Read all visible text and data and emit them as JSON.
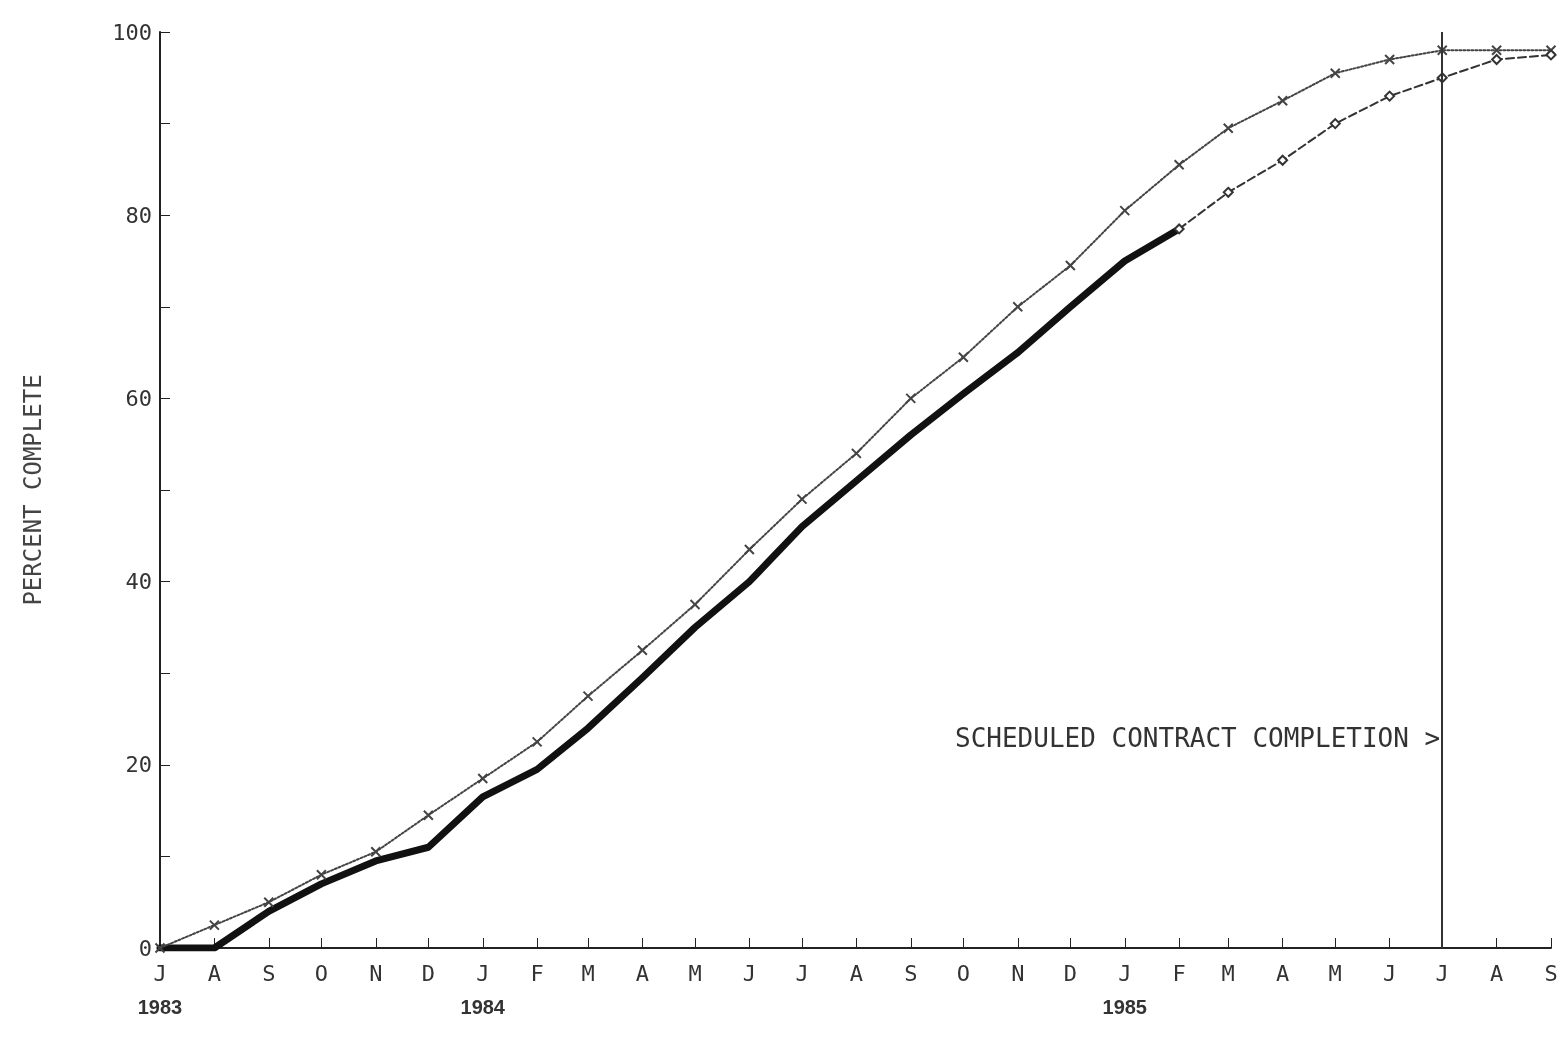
{
  "chart_data": {
    "type": "line",
    "ylabel": "PERCENT COMPLETE",
    "x": [
      "1983-07",
      "1983-08",
      "1983-09",
      "1983-10",
      "1983-11",
      "1983-12",
      "1984-01",
      "1984-02",
      "1984-03",
      "1984-04",
      "1984-05",
      "1984-06",
      "1984-07",
      "1984-08",
      "1984-09",
      "1984-10",
      "1984-11",
      "1984-12",
      "1985-01",
      "1985-02",
      "1985-03",
      "1985-04",
      "1985-05",
      "1985-06",
      "1985-07",
      "1985-08",
      "1985-09"
    ],
    "xlim": [
      "1983-07",
      "1985-09"
    ],
    "xticks": [
      {
        "value": "1983-07",
        "label": "J\n1983"
      },
      {
        "value": "1983-08",
        "label": "A"
      },
      {
        "value": "1983-09",
        "label": "S"
      },
      {
        "value": "1983-10",
        "label": "O"
      },
      {
        "value": "1983-11",
        "label": "N"
      },
      {
        "value": "1983-12",
        "label": "D"
      },
      {
        "value": "1984-01",
        "label": "J\n1984"
      },
      {
        "value": "1984-02",
        "label": "F"
      },
      {
        "value": "1984-03",
        "label": "M"
      },
      {
        "value": "1984-04",
        "label": "A"
      },
      {
        "value": "1984-05",
        "label": "M"
      },
      {
        "value": "1984-06",
        "label": "J"
      },
      {
        "value": "1984-07",
        "label": "J"
      },
      {
        "value": "1984-08",
        "label": "A"
      },
      {
        "value": "1984-09",
        "label": "S"
      },
      {
        "value": "1984-10",
        "label": "O"
      },
      {
        "value": "1984-11",
        "label": "N"
      },
      {
        "value": "1984-12",
        "label": "D"
      },
      {
        "value": "1985-01",
        "label": "J\n1985"
      },
      {
        "value": "1985-02",
        "label": "F"
      },
      {
        "value": "1985-03",
        "label": "M"
      },
      {
        "value": "1985-04",
        "label": "A"
      },
      {
        "value": "1985-05",
        "label": "M"
      },
      {
        "value": "1985-06",
        "label": "J"
      },
      {
        "value": "1985-07",
        "label": "J"
      },
      {
        "value": "1985-08",
        "label": "A"
      },
      {
        "value": "1985-09",
        "label": "S"
      }
    ],
    "ylim": [
      0,
      100
    ],
    "yticks": [
      0,
      {
        "value": 10,
        "label": null
      },
      20,
      {
        "value": 30,
        "label": null
      },
      40,
      {
        "value": 50,
        "label": null
      },
      60,
      {
        "value": 70,
        "label": null
      },
      80,
      {
        "value": 90,
        "label": null
      },
      100
    ],
    "grid": false,
    "series": [
      {
        "color": "#111111",
        "line_style": "solid",
        "marker": "none",
        "values": [
          0,
          0,
          4,
          7,
          9.5,
          11,
          16.5,
          19.5,
          24,
          29.5,
          35,
          40,
          46,
          51,
          56,
          60.5,
          65,
          70,
          75,
          78.5,
          null,
          null,
          null,
          null,
          null,
          null,
          null
        ]
      },
      {
        "color": "#444444",
        "line_style": "dotted",
        "marker": "cross",
        "values": [
          0,
          2.5,
          5,
          8,
          10.5,
          14.5,
          18.5,
          22.5,
          27.5,
          32.5,
          37.5,
          43.5,
          49,
          54,
          60,
          64.5,
          70,
          74.5,
          80.5,
          85.5,
          89.5,
          92.5,
          95.5,
          97,
          98,
          98,
          98
        ]
      },
      {
        "color": "#333333",
        "line_style": "dashed",
        "marker": "diamond",
        "values": [
          null,
          null,
          null,
          null,
          null,
          null,
          null,
          null,
          null,
          null,
          null,
          null,
          null,
          null,
          null,
          null,
          null,
          null,
          null,
          78.5,
          82.5,
          86,
          90,
          93,
          95,
          97,
          97.5
        ]
      }
    ],
    "ref_lines": [
      {
        "axis": "x",
        "value": "1985-07",
        "label": "SCHEDULED CONTRACT COMPLETION >",
        "color": "#333333",
        "line_style": "solid"
      }
    ]
  }
}
